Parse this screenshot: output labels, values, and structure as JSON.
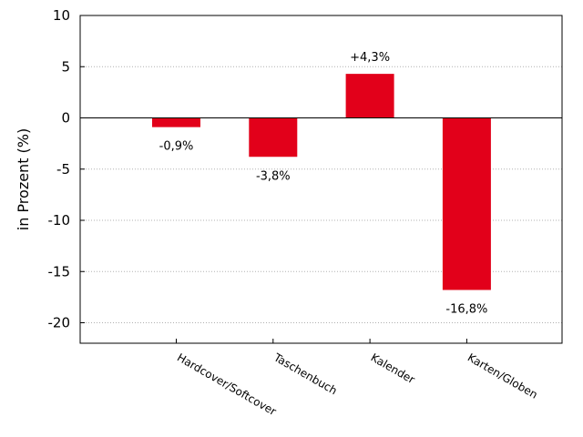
{
  "chart_data": {
    "type": "bar",
    "categories": [
      "Hardcover/Softcover",
      "Taschenbuch",
      "Kalender",
      "Karten/Globen"
    ],
    "values": [
      -0.9,
      -3.8,
      4.3,
      -16.8
    ],
    "data_labels": [
      "-0,9%",
      "-3,8%",
      "+4,3%",
      "-16,8%"
    ],
    "ylabel": "in Prozent (%)",
    "ylim": [
      -22,
      10
    ],
    "yticks": [
      10,
      5,
      0,
      -5,
      -10,
      -15,
      -20
    ],
    "grid": true,
    "bar_color": "#e2001a",
    "grid_color": "#b0b0b0",
    "zero_line_color": "#000000"
  }
}
